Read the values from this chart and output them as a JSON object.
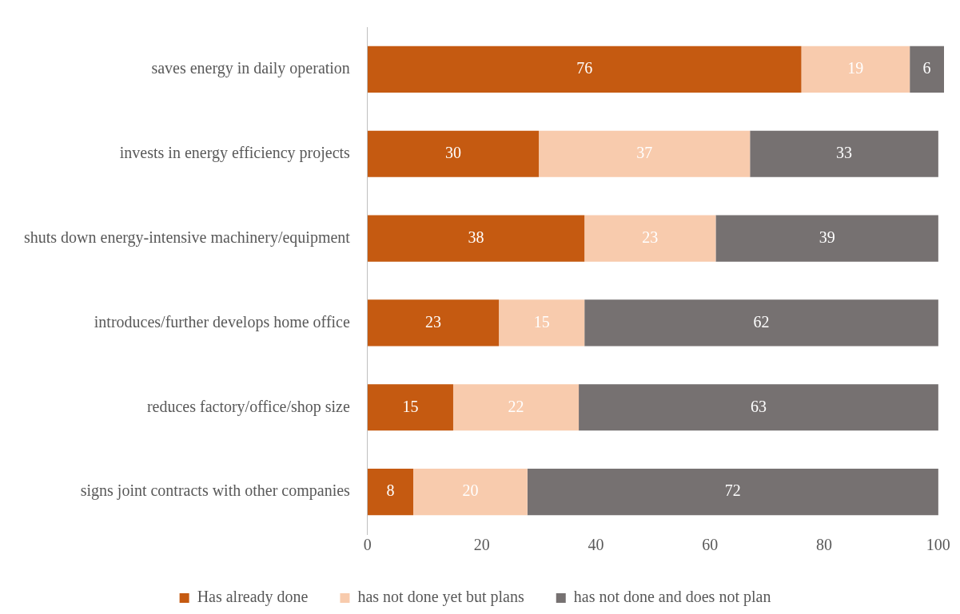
{
  "chart_data": {
    "type": "bar",
    "orientation": "horizontal",
    "stacked": true,
    "data_labels": true,
    "grid": false,
    "legend": "bottom",
    "categories": [
      "saves energy in daily operation",
      "invests in energy efficiency projects",
      "shuts down energy-intensive machinery/equipment",
      "introduces/further develops home office",
      "reduces factory/office/shop size",
      "signs joint contracts with other companies"
    ],
    "series": [
      {
        "name": "Has already done",
        "color": "#c55a11",
        "values": [
          76,
          30,
          38,
          23,
          15,
          8
        ]
      },
      {
        "name": "has not done yet but plans",
        "color": "#f8cbad",
        "values": [
          19,
          37,
          23,
          15,
          22,
          20
        ]
      },
      {
        "name": "has not done and does not plan",
        "color": "#767171",
        "values": [
          6,
          33,
          39,
          62,
          63,
          72
        ]
      }
    ],
    "xlim": [
      0,
      101
    ],
    "xticks": [
      0,
      20,
      40,
      60,
      80,
      100
    ]
  }
}
